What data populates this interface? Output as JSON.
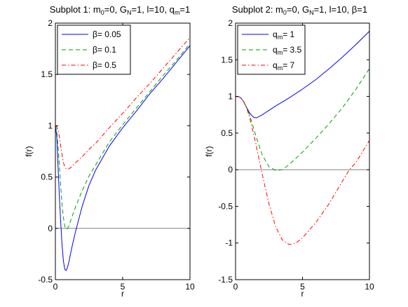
{
  "chart_data": [
    {
      "type": "line",
      "title_parts": [
        "Subplot 1: m",
        "0",
        "=0, G",
        "N",
        "=1, l=10, q",
        "m",
        "=1"
      ],
      "xlabel": "r",
      "ylabel": "f(r)",
      "xlim": [
        0,
        10
      ],
      "ylim": [
        -0.5,
        2
      ],
      "xticks": [
        0,
        5,
        10
      ],
      "xtick_labels": [
        "0",
        "5",
        "10"
      ],
      "yticks": [
        -0.5,
        0,
        0.5,
        1,
        1.5,
        2
      ],
      "ytick_labels": [
        "-0.5",
        "0",
        "0.5",
        "1",
        "1.5",
        "2"
      ],
      "zero_line": true,
      "grid": false,
      "legend": "top-left",
      "series": [
        {
          "name": "β= 0.05",
          "color": "#0000ff",
          "dash": "solid",
          "x": [
            0,
            0.1,
            0.2,
            0.3,
            0.4,
            0.5,
            0.6,
            0.7,
            0.8,
            0.9,
            1.0,
            1.2,
            1.5,
            2,
            2.5,
            3,
            4,
            5,
            6,
            7,
            8,
            9,
            10
          ],
          "y": [
            1.0,
            0.9,
            0.6,
            0.3,
            0.05,
            -0.17,
            -0.32,
            -0.4,
            -0.41,
            -0.38,
            -0.33,
            -0.2,
            -0.03,
            0.22,
            0.42,
            0.57,
            0.8,
            0.98,
            1.14,
            1.31,
            1.46,
            1.62,
            1.78
          ]
        },
        {
          "name": "β= 0.1",
          "color": "#00a000",
          "dash": "6,4",
          "x": [
            0,
            0.1,
            0.2,
            0.3,
            0.4,
            0.5,
            0.6,
            0.7,
            0.8,
            0.9,
            1.0,
            1.2,
            1.5,
            2,
            2.5,
            3,
            4,
            5,
            6,
            7,
            8,
            9,
            10
          ],
          "y": [
            1.0,
            0.95,
            0.8,
            0.6,
            0.4,
            0.22,
            0.1,
            0.02,
            -0.01,
            0.0,
            0.02,
            0.1,
            0.21,
            0.37,
            0.51,
            0.62,
            0.84,
            1.01,
            1.17,
            1.33,
            1.49,
            1.64,
            1.8
          ]
        },
        {
          "name": "β= 0.5",
          "color": "#ff0000",
          "dash": "6,3,1.5,3",
          "x": [
            0,
            0.1,
            0.2,
            0.3,
            0.4,
            0.5,
            0.6,
            0.7,
            0.8,
            0.9,
            1.0,
            1.2,
            1.5,
            2,
            2.5,
            3,
            4,
            5,
            6,
            7,
            8,
            9,
            10
          ],
          "y": [
            1.0,
            0.99,
            0.96,
            0.89,
            0.8,
            0.71,
            0.64,
            0.6,
            0.58,
            0.575,
            0.58,
            0.6,
            0.64,
            0.7,
            0.77,
            0.83,
            0.98,
            1.12,
            1.27,
            1.41,
            1.56,
            1.71,
            1.86
          ]
        }
      ]
    },
    {
      "type": "line",
      "title_parts": [
        "Subplot 2:  m",
        "0",
        "=0, G",
        "N",
        "=1, l=10, β=1"
      ],
      "xlabel": "r",
      "ylabel": "f(r)",
      "xlim": [
        0,
        10
      ],
      "ylim": [
        -1.5,
        2
      ],
      "xticks": [
        0,
        5,
        10
      ],
      "xtick_labels": [
        "0",
        "5",
        "10"
      ],
      "yticks": [
        -1.5,
        -1,
        -0.5,
        0,
        0.5,
        1,
        1.5,
        2
      ],
      "ytick_labels": [
        "-1.5",
        "-1",
        "-0.5",
        "0",
        "0.5",
        "1",
        "1.5",
        "2"
      ],
      "zero_line": true,
      "grid": false,
      "legend": "top-left",
      "series": [
        {
          "name_parts": [
            "q",
            "m",
            "= 1"
          ],
          "color": "#0000ff",
          "dash": "solid",
          "x": [
            0,
            0.2,
            0.4,
            0.6,
            0.8,
            1.0,
            1.2,
            1.4,
            1.6,
            2,
            2.5,
            3,
            4,
            5,
            6,
            7,
            8,
            9,
            10
          ],
          "y": [
            1.0,
            1.0,
            0.98,
            0.93,
            0.86,
            0.79,
            0.74,
            0.71,
            0.71,
            0.75,
            0.81,
            0.87,
            0.98,
            1.1,
            1.23,
            1.38,
            1.54,
            1.71,
            1.89
          ]
        },
        {
          "name_parts": [
            "q",
            "m",
            "= 3.5"
          ],
          "color": "#00a000",
          "dash": "6,4",
          "x": [
            0,
            0.2,
            0.4,
            0.6,
            0.8,
            1.0,
            1.2,
            1.5,
            2,
            2.5,
            3,
            3.5,
            4,
            5,
            6,
            7,
            8,
            9,
            10
          ],
          "y": [
            1.0,
            1.0,
            0.98,
            0.93,
            0.86,
            0.77,
            0.66,
            0.47,
            0.2,
            0.04,
            -0.01,
            0.0,
            0.07,
            0.24,
            0.43,
            0.63,
            0.85,
            1.1,
            1.38
          ]
        },
        {
          "name_parts": [
            "q",
            "m",
            "= 7"
          ],
          "color": "#ff0000",
          "dash": "6,3,1.5,3",
          "x": [
            0,
            0.2,
            0.4,
            0.6,
            0.8,
            1.0,
            1.5,
            2,
            2.5,
            3,
            3.5,
            4,
            4.5,
            5,
            6,
            7,
            8,
            8.5,
            9,
            10
          ],
          "y": [
            1.0,
            1.0,
            0.98,
            0.93,
            0.85,
            0.75,
            0.37,
            -0.07,
            -0.47,
            -0.78,
            -0.96,
            -1.02,
            -1.0,
            -0.93,
            -0.72,
            -0.46,
            -0.15,
            0.0,
            0.1,
            0.4
          ]
        }
      ]
    }
  ]
}
